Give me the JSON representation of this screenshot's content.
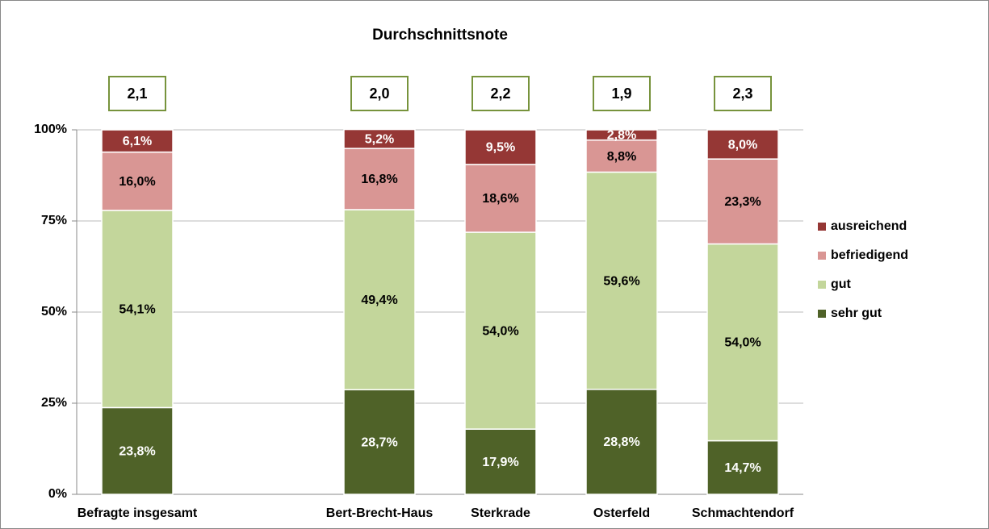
{
  "chart_data": {
    "type": "stacked_bar",
    "title": "Durchschnittsnote",
    "categories": [
      "Befragte insgesamt",
      null,
      "Bert-Brecht-Haus",
      "Sterkrade",
      "Osterfeld",
      "Schmachtendorf"
    ],
    "average_labels": [
      "2,1",
      null,
      "2,0",
      "2,2",
      "1,9",
      "2,3"
    ],
    "series": [
      {
        "name": "sehr gut",
        "color": "#4f6228",
        "values": [
          23.8,
          null,
          28.7,
          17.9,
          28.8,
          14.7
        ],
        "value_labels": [
          "23,8%",
          null,
          "28,7%",
          "17,9%",
          "28,8%",
          "14,7%"
        ]
      },
      {
        "name": "gut",
        "color": "#c3d69b",
        "values": [
          54.1,
          null,
          49.4,
          54.0,
          59.6,
          54.0
        ],
        "value_labels": [
          "54,1%",
          null,
          "49,4%",
          "54,0%",
          "59,6%",
          "54,0%"
        ]
      },
      {
        "name": "befriedigend",
        "color": "#d99694",
        "values": [
          16.0,
          null,
          16.8,
          18.6,
          8.8,
          23.3
        ],
        "value_labels": [
          "16,0%",
          null,
          "16,8%",
          "18,6%",
          "8,8%",
          "23,3%"
        ]
      },
      {
        "name": "ausreichend",
        "color": "#953735",
        "values": [
          6.1,
          null,
          5.2,
          9.5,
          2.8,
          8.0
        ],
        "value_labels": [
          "6,1%",
          null,
          "5,2%",
          "9,5%",
          "2,8%",
          "8,0%"
        ]
      }
    ],
    "ylim": [
      0,
      100
    ],
    "yticks": [
      {
        "value": 0,
        "label": "0%"
      },
      {
        "value": 25,
        "label": "25%"
      },
      {
        "value": 50,
        "label": "50%"
      },
      {
        "value": 75,
        "label": "75%"
      },
      {
        "value": 100,
        "label": "100%"
      }
    ],
    "grid": true,
    "legend": "right"
  }
}
